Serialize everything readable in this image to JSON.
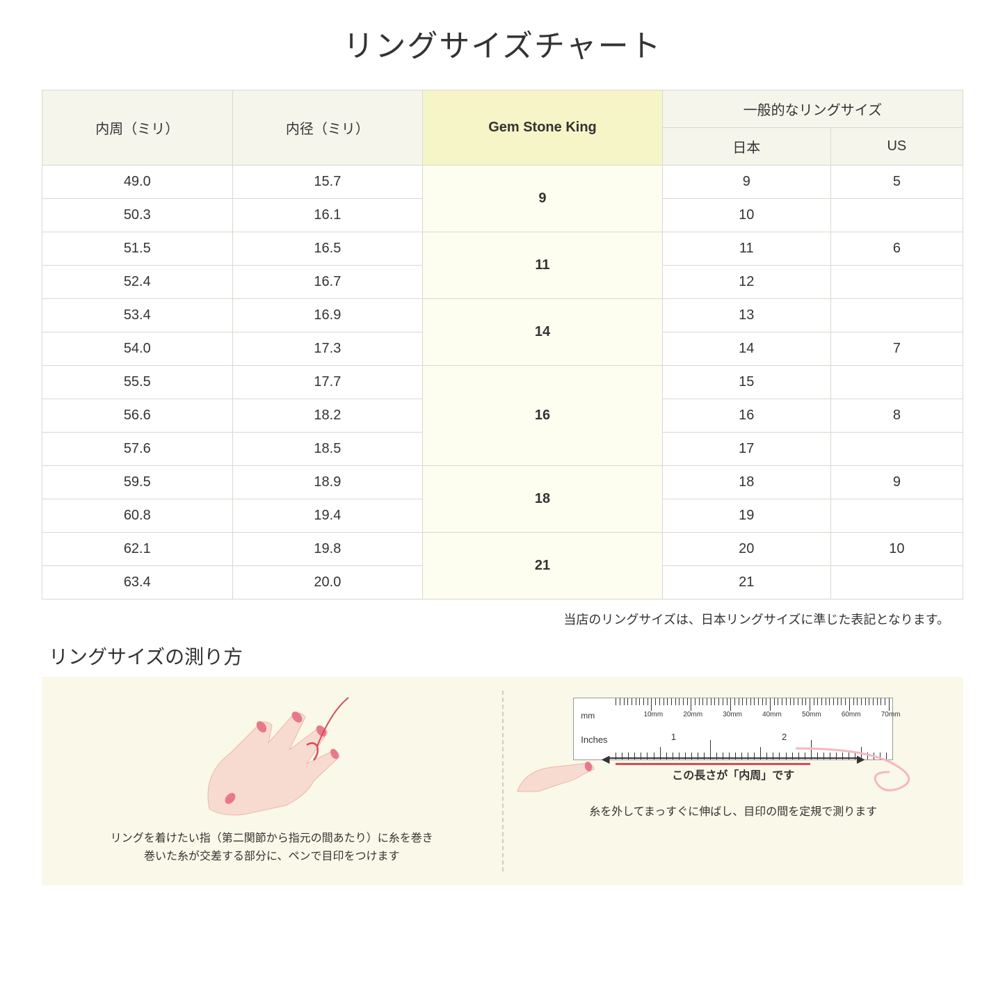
{
  "title": "リングサイズチャート",
  "headers": {
    "circumference": "内周（ミリ）",
    "diameter": "内径（ミリ）",
    "gsk": "Gem Stone King",
    "general": "一般的なリングサイズ",
    "japan": "日本",
    "us": "US"
  },
  "rows": [
    {
      "circ": "49.0",
      "dia": "15.7",
      "gsk": "9",
      "gsk_span": 2,
      "jp": "9",
      "us": "5"
    },
    {
      "circ": "50.3",
      "dia": "16.1",
      "jp": "10",
      "us": ""
    },
    {
      "circ": "51.5",
      "dia": "16.5",
      "gsk": "11",
      "gsk_span": 2,
      "jp": "11",
      "us": "6"
    },
    {
      "circ": "52.4",
      "dia": "16.7",
      "jp": "12",
      "us": ""
    },
    {
      "circ": "53.4",
      "dia": "16.9",
      "gsk": "14",
      "gsk_span": 2,
      "jp": "13",
      "us": ""
    },
    {
      "circ": "54.0",
      "dia": "17.3",
      "jp": "14",
      "us": "7"
    },
    {
      "circ": "55.5",
      "dia": "17.7",
      "gsk": "16",
      "gsk_span": 3,
      "jp": "15",
      "us": ""
    },
    {
      "circ": "56.6",
      "dia": "18.2",
      "jp": "16",
      "us": "8"
    },
    {
      "circ": "57.6",
      "dia": "18.5",
      "jp": "17",
      "us": ""
    },
    {
      "circ": "59.5",
      "dia": "18.9",
      "gsk": "18",
      "gsk_span": 2,
      "jp": "18",
      "us": "9"
    },
    {
      "circ": "60.8",
      "dia": "19.4",
      "jp": "19",
      "us": ""
    },
    {
      "circ": "62.1",
      "dia": "19.8",
      "gsk": "21",
      "gsk_span": 2,
      "jp": "20",
      "us": "10"
    },
    {
      "circ": "63.4",
      "dia": "20.0",
      "jp": "21",
      "us": ""
    }
  ],
  "note": "当店のリングサイズは、日本リングサイズに準じた表記となります。",
  "measure": {
    "title": "リングサイズの測り方",
    "left_caption": "リングを着けたい指（第二関節から指元の間あたり）に糸を巻き\n巻いた糸が交差する部分に、ペンで目印をつけます",
    "right_arrow_label": "この長さが「内周」です",
    "right_caption": "糸を外してまっすぐに伸ばし、目印の間を定規で測ります",
    "ruler_mm_label": "mm",
    "ruler_in_label": "Inches",
    "ruler_mm_ticks": [
      "10mm",
      "20mm",
      "30mm",
      "40mm",
      "50mm",
      "60mm",
      "70mm"
    ],
    "ruler_in_ticks": [
      "1",
      "2"
    ]
  },
  "colors": {
    "header_bg": "#f5f5ec",
    "highlight_header_bg": "#f5f5c8",
    "highlight_cell_bg": "#fdfdf0",
    "border": "#d8d8d0",
    "measure_bg": "#faf8e8",
    "hand_fill": "#f8dbd0",
    "nail_fill": "#e8788c",
    "thread": "#d94a5a"
  }
}
